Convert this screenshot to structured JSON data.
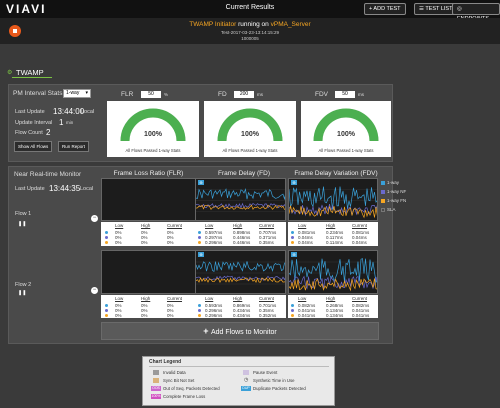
{
  "app": {
    "logo": "VIAVI",
    "page_title": "Current Results"
  },
  "toolbar": {
    "add_test": "+ ADD TEST",
    "test_list": "TEST LIST",
    "endpoints": "ENDPOINTS"
  },
  "session": {
    "initiator": "TWAMP Initiator",
    "running_on": "running on",
    "server": "vPMA_Server",
    "line2": "Test-2017-03-23-13:14:15:29",
    "line3": "1000005"
  },
  "tab": {
    "label": "TWAMP"
  },
  "pm": {
    "title": "PM Interval Stats",
    "mode": "1-way",
    "last_update_label": "Last Update",
    "last_update_value": "13:44:00",
    "last_update_zone": "Local",
    "update_interval_label": "Update Interval",
    "update_interval_value": "1",
    "update_interval_unit": "min",
    "flow_count_label": "Flow Count",
    "flow_count_value": "2",
    "show_all": "Show All Flows",
    "run_report": "Run Report",
    "gauges": [
      {
        "key": "FLR",
        "threshold": "50",
        "unit": "%",
        "value": "100%",
        "caption": "All Flows Passed 1-way Stats",
        "fill": 1.0
      },
      {
        "key": "FD",
        "threshold": "200",
        "unit": "ms",
        "value": "100%",
        "caption": "All Flows Passed 1-way Stats",
        "fill": 1.0
      },
      {
        "key": "FDV",
        "threshold": "50",
        "unit": "ms",
        "value": "100%",
        "caption": "All Flows Passed 1-way Stats",
        "fill": 1.0
      }
    ]
  },
  "nrt": {
    "title": "Near Real-time Monitor",
    "last_update_label": "Last Update",
    "last_update_value": "13:44:35",
    "last_update_zone": "Local",
    "col_flr": "Frame Loss Ratio (FLR)",
    "col_fd": "Frame Delay (FD)",
    "col_fdv": "Frame Delay Variation (FDV)",
    "legend": [
      {
        "label": "1-way",
        "color": "#3aa0d8"
      },
      {
        "label": "1-way NF",
        "color": "#6a6acd"
      },
      {
        "label": "1-way FN",
        "color": "#f6a623"
      },
      {
        "label": "SLA",
        "color": "#777777"
      }
    ],
    "stat_headers": [
      "Low",
      "High",
      "Current"
    ],
    "flows": [
      {
        "name": "Flow 1",
        "flr": [
          [
            "0%",
            "0%",
            "0%"
          ],
          [
            "0%",
            "0%",
            "0%"
          ],
          [
            "0%",
            "0%",
            "0%"
          ]
        ],
        "fd": [
          [
            "0.597ms",
            "0.898ms",
            "0.707ms"
          ],
          [
            "0.297ms",
            "0.446ms",
            "0.371ms"
          ],
          [
            "0.296ms",
            "0.446ms",
            "0.35ms"
          ]
        ],
        "fdv": [
          [
            "0.081ms",
            "0.234ms",
            "0.081ms"
          ],
          [
            "0.04ms",
            "0.117ms",
            "0.04ms"
          ],
          [
            "0.04ms",
            "0.114ms",
            "0.04ms"
          ]
        ]
      },
      {
        "name": "Flow 2",
        "flr": [
          [
            "0%",
            "0%",
            "0%"
          ],
          [
            "0%",
            "0%",
            "0%"
          ],
          [
            "0%",
            "0%",
            "0%"
          ]
        ],
        "fd": [
          [
            "0.593ms",
            "0.869ms",
            "0.701ms"
          ],
          [
            "0.296ms",
            "0.434ms",
            "0.35ms"
          ],
          [
            "0.296ms",
            "0.434ms",
            "0.352ms"
          ]
        ],
        "fdv": [
          [
            "0.082ms",
            "0.268ms",
            "0.082ms"
          ],
          [
            "0.041ms",
            "0.134ms",
            "0.041ms"
          ],
          [
            "0.041ms",
            "0.134ms",
            "0.041ms"
          ]
        ]
      }
    ],
    "add_flows": "Add Flows to Monitor"
  },
  "chart_legend": {
    "title": "Chart Legend",
    "items": [
      {
        "label": "Invalid Data",
        "swatch": "#9a9a9a"
      },
      {
        "label": "Pause Event",
        "swatch": "#cfc2e0"
      },
      {
        "label": "Sync Bit Not Set",
        "swatch": "#d9b27a"
      },
      {
        "label": "Synthetic Time in Use",
        "swatch": "#bbbbbb"
      },
      {
        "label": "Out of Seq. Packets Detected",
        "swatch": "#cc66cc",
        "tag": "OOS"
      },
      {
        "label": "Duplicate Packets Detected",
        "swatch": "#3aa0d8",
        "tag": "DUP"
      },
      {
        "label": "Complete Frame Loss",
        "swatch": "#d050c0",
        "tag": "100%"
      }
    ]
  },
  "colors": {
    "accent_orange": "#e8591b",
    "gauge_green": "#4caf50",
    "series_blue": "#3aa0d8",
    "series_orange": "#f6a623"
  }
}
